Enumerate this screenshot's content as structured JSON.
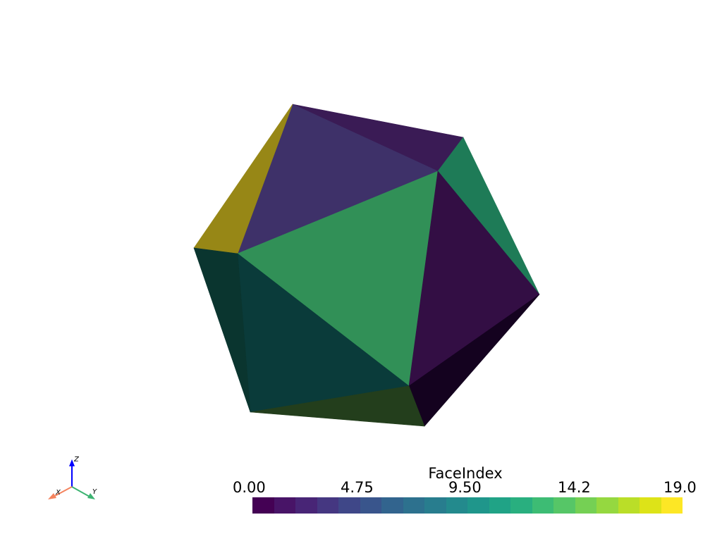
{
  "scene": {
    "background": "#ffffff",
    "mesh": "icosahedron",
    "face_colors": [
      "#3a1b55",
      "#3e3169",
      "#978716",
      "#1e7b57",
      "#319057",
      "#330e44",
      "#14021f",
      "#0a3b3a",
      "#0a352f",
      "#233e1c"
    ]
  },
  "orientation_axes": {
    "x_label": "X",
    "y_label": "Y",
    "z_label": "Z",
    "x_color": "#f4845f",
    "y_color": "#3cb371",
    "z_color": "#0000ff"
  },
  "scalar_bar": {
    "title": "FaceIndex",
    "colormap": "viridis",
    "range": [
      0,
      19
    ],
    "ticks": [
      "0.00",
      "4.75",
      "9.50",
      "14.2",
      "19.0"
    ],
    "colors": [
      "#440154",
      "#481467",
      "#482576",
      "#453781",
      "#3f4788",
      "#39558c",
      "#32648e",
      "#2d718e",
      "#287d8e",
      "#238a8d",
      "#1f968b",
      "#20a386",
      "#29af7f",
      "#3dbc74",
      "#56c667",
      "#75d054",
      "#95d840",
      "#bade28",
      "#dde318",
      "#fde725"
    ]
  }
}
